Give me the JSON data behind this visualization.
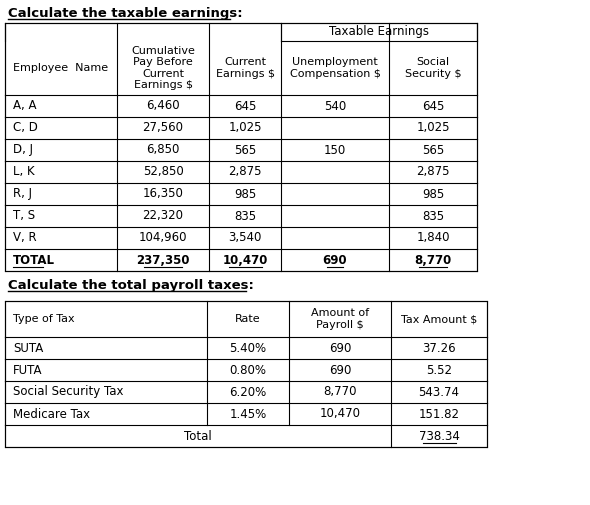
{
  "title1": "Calculate the taxable earnings:",
  "title2": "Calculate the total payroll taxes:",
  "bg_color": "#ffffff",
  "text_color": "#000000",
  "table1": {
    "col_headers": [
      "Employee  Name",
      "Cumulative\nPay Before\nCurrent\nEarnings $",
      "Current\nEarnings $",
      "Unemployment\nCompensation $",
      "Social\nSecurity $"
    ],
    "taxable_earnings_header": "Taxable Earnings",
    "rows": [
      [
        "A, A",
        "6,460",
        "645",
        "540",
        "645"
      ],
      [
        "C, D",
        "27,560",
        "1,025",
        "",
        "1,025"
      ],
      [
        "D, J",
        "6,850",
        "565",
        "150",
        "565"
      ],
      [
        "L, K",
        "52,850",
        "2,875",
        "",
        "2,875"
      ],
      [
        "R, J",
        "16,350",
        "985",
        "",
        "985"
      ],
      [
        "T, S",
        "22,320",
        "835",
        "",
        "835"
      ],
      [
        "V, R",
        "104,960",
        "3,540",
        "",
        "1,840"
      ],
      [
        "TOTAL",
        "237,350",
        "10,470",
        "690",
        "8,770"
      ]
    ]
  },
  "table2": {
    "col_headers": [
      "Type of Tax",
      "Rate",
      "Amount of\nPayroll $",
      "Tax Amount $"
    ],
    "rows": [
      [
        "SUTA",
        "5.40%",
        "690",
        "37.26"
      ],
      [
        "FUTA",
        "0.80%",
        "690",
        "5.52"
      ],
      [
        "Social Security Tax",
        "6.20%",
        "8,770",
        "543.74"
      ],
      [
        "Medicare Tax",
        "1.45%",
        "10,470",
        "151.82"
      ]
    ],
    "total_label": "Total",
    "total_value": "738.34"
  }
}
